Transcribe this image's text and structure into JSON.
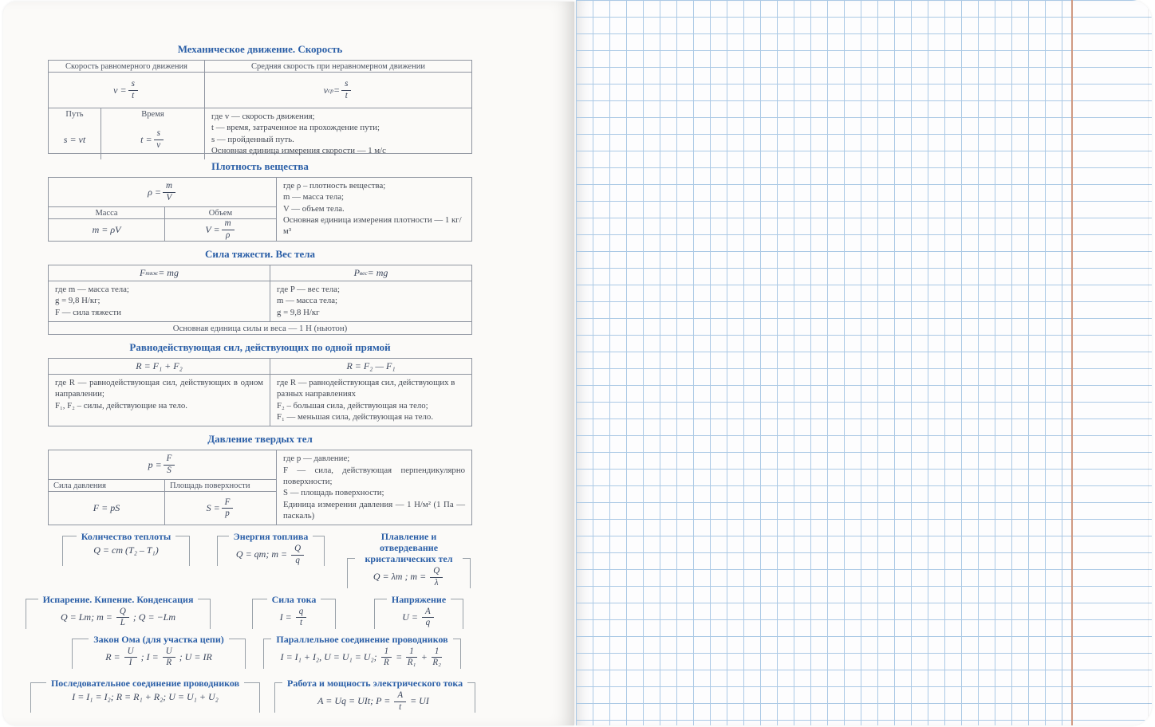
{
  "colors": {
    "title_blue": "#2b5fa7",
    "grid_blue": "#abc9e5",
    "margin_red": "#c8886d",
    "text_dark": "#414a5a",
    "border_gray": "#8f95a0"
  },
  "formulas_page": {
    "sections": {
      "motion": {
        "title": "Механическое движение. Скорость",
        "col1_header": "Скорость равномерного движения",
        "col2_header": "Средняя скорость при неравномерном движении",
        "formula1": "v = {s|t}",
        "formula2": "v_(ср) = {s|t}",
        "path_header": "Путь",
        "time_header": "Время",
        "path_formula": "s = vt",
        "time_formula": "t = {s|v}",
        "notes": [
          "где v — скорость движения;",
          "t — время, затраченное на прохождение пути;",
          "s — пройденный путь.",
          "Основная единица измерения скорости — 1 м/с"
        ]
      },
      "density": {
        "title": "Плотность вещества",
        "main_formula": "ρ = {m|V}",
        "mass_header": "Масса",
        "volume_header": "Объем",
        "mass_formula": "m = ρV",
        "volume_formula": "V = {m|ρ}",
        "notes": [
          "где ρ – плотность вещества;",
          "m — масса тела;",
          "V — объем тела.",
          "Основная единица измерения плотности — 1 кг/м³"
        ]
      },
      "gravity": {
        "title": "Сила тяжести. Вес тела",
        "formula1": "F_(тяж) = mg",
        "formula2": "P_(вес) = mg",
        "notes1": [
          "где m — масса тела;",
          "g = 9,8 Н/кг;",
          "F — сила тяжести"
        ],
        "notes2": [
          "где P — вес тела;",
          "m — масса тела;",
          "g = 9,8 Н/кг"
        ],
        "footer": "Основная единица силы и веса — 1 Н (ньютон)"
      },
      "resultant": {
        "title": "Равнодействующая сил, действующих по одной прямой",
        "formula1": "R = F₁ + F₂",
        "formula2": "R = F₂ — F₁",
        "notes1": [
          "где R — равнодействующая сил, действующих в одном направлении;",
          "F₁, F₂ – силы, действующие на тело."
        ],
        "notes2": [
          "где R — равнодействующая сил, действующих в разных направлениях",
          "F₂ – большая сила, действующая на тело;",
          "F₁ — меньшая сила, действующая на тело."
        ]
      },
      "pressure": {
        "title": "Давление твердых тел",
        "main_formula": "p = {F|S}",
        "force_header": "Сила давления",
        "area_header": "Площадь поверхности",
        "force_formula": "F = pS",
        "area_formula": "S = {F|p}",
        "notes": [
          "где p — давление;",
          "F — сила, действующая перпендикулярно поверхности;",
          "S — площадь поверхности;",
          "Единица измерения давления — 1 Н/м² (1 Па — паскаль)"
        ]
      }
    },
    "mini": [
      {
        "title": "Количество теплоты",
        "formula": "Q = cm (T₂ – T₁)"
      },
      {
        "title": "Энергия топлива",
        "formula": "Q = qm;  m = {Q|q}"
      },
      {
        "title": "Плавление и отвердевание",
        "title2": "кристалических тел",
        "formula": "Q = λm ;  m = {Q|λ}"
      },
      {
        "title": "Испарение. Кипение. Конденсация",
        "formula": "Q = Lm;  m = {Q|L} ;  Q = −Lm"
      },
      {
        "title": "Сила тока",
        "formula": "I = {q|t}"
      },
      {
        "title": "Напряжение",
        "formula": "U = {A|q}"
      },
      {
        "title": "Закон Ома (для участка цепи)",
        "formula": "R = {U|I} ;  I = {U|R} ;  U = IR"
      },
      {
        "title": "Параллельное соединение проводников",
        "formula": "I = I₁ + I₂, U = U₁ = U₂;  {1|R} = {1|R₁} + {1|R₂}"
      },
      {
        "title": "Последовательное соединение проводников",
        "formula": "I = I₁ = I₂;  R = R₁ + R₂;  U = U₁ + U₂"
      },
      {
        "title": "Работа и мощность электрического тока",
        "formula": "A = Uq = UIt;  P = {A|t} = UI"
      }
    ]
  }
}
